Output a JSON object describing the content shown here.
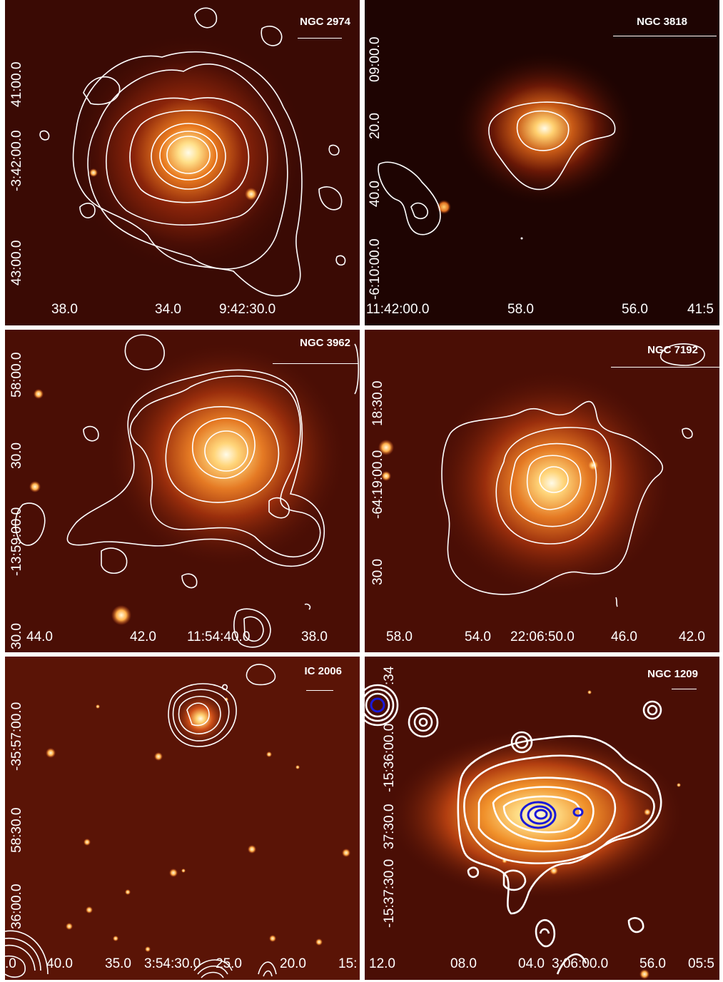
{
  "figure": {
    "background": "#ffffff",
    "image_colormap": [
      "#2a0602",
      "#7a1a08",
      "#d2521a",
      "#ffb04a",
      "#fff8dc"
    ],
    "contour_color": "#ffffff",
    "inner_contour_color": "#1a1ad8"
  },
  "panels": [
    {
      "id": "ngc2974",
      "title": "NGC 2974",
      "x_ticks": [
        "38.0",
        "34.0",
        "9:42:30.0"
      ],
      "y_ticks": [
        "41:00.0",
        "-3:42:00.0",
        "43:00.0"
      ]
    },
    {
      "id": "ngc3818",
      "title": "NGC 3818",
      "x_ticks": [
        "11:42:00.0",
        "58.0",
        "56.0",
        "41:5"
      ],
      "y_ticks": [
        "09:00.0",
        "20.0",
        "40.0",
        "-6:10:00.0"
      ]
    },
    {
      "id": "ngc3962",
      "title": "NGC 3962",
      "x_ticks": [
        "44.0",
        "42.0",
        "11:54:40.0",
        "38.0"
      ],
      "y_ticks": [
        "58:00.0",
        "30.0",
        "-13:59:00.0",
        "30.0"
      ]
    },
    {
      "id": "ngc7192",
      "title": "NGC 7192",
      "x_ticks": [
        "58.0",
        "54.0",
        "22:06:50.0",
        "46.0",
        "42.0"
      ],
      "y_ticks": [
        "18:30.0",
        "-64:19:00.0",
        "30.0"
      ]
    },
    {
      "id": "ic2006",
      "title": "IC 2006",
      "x_ticks": [
        ".0",
        "40.0",
        "35.0",
        "3:54:30.0",
        "25.0",
        "20.0",
        "15:"
      ],
      "y_ticks": [
        "-35:57:00.0",
        "58:30.0",
        "36:00.0"
      ]
    },
    {
      "id": "ngc1209",
      "title": "NGC 1209",
      "x_ticks": [
        "12.0",
        "08.0",
        "04.0",
        "3:06:00.0",
        "56.0",
        "05:5"
      ],
      "y_ticks": [
        "-15:36:00.0",
        "37:30.0",
        "-15:37:30.0",
        ":34"
      ]
    }
  ]
}
